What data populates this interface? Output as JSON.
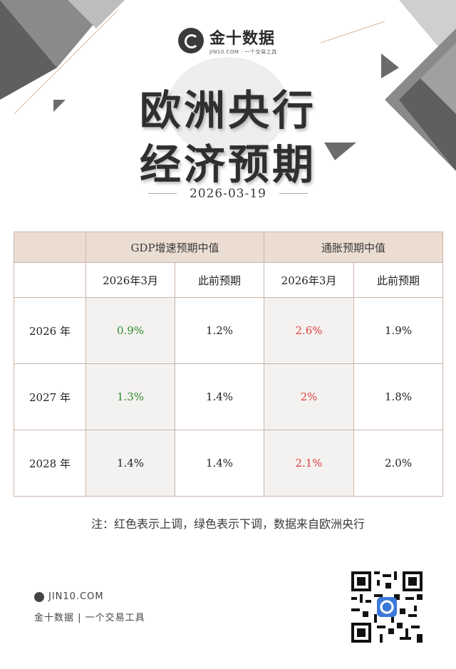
{
  "brand": {
    "name": "金十数据",
    "sub": "JIN10.COM · 一个交易工具"
  },
  "title": {
    "line1": "欧洲央行",
    "line2": "经济预期"
  },
  "date": "2026-03-19",
  "table": {
    "group_headers": [
      "GDP增速预期中值",
      "通胀预期中值"
    ],
    "sub_headers": [
      "2026年3月",
      "此前预期",
      "2026年3月",
      "此前预期"
    ],
    "rows": [
      {
        "year": "2026 年",
        "gdp_new": "0.9%",
        "gdp_prev": "1.2%",
        "cpi_new": "2.6%",
        "cpi_prev": "1.9%"
      },
      {
        "year": "2027 年",
        "gdp_new": "1.3%",
        "gdp_prev": "1.4%",
        "cpi_new": "2%",
        "cpi_prev": "1.8%"
      },
      {
        "year": "2028 年",
        "gdp_new": "1.4%",
        "gdp_prev": "1.4%",
        "cpi_new": "2.1%",
        "cpi_prev": "2.0%"
      }
    ]
  },
  "note": "注：红色表示上调，绿色表示下调，数据来自欧洲央行",
  "footer": {
    "site": "JIN10.COM",
    "tagline": "金十数据 | 一个交易工具"
  },
  "colors": {
    "up": "#d94040",
    "down": "#2e8b2e",
    "header_bg": "#ecddd3",
    "border": "#c9b5a8"
  },
  "icons": [
    "logo-icon",
    "qr-code"
  ]
}
